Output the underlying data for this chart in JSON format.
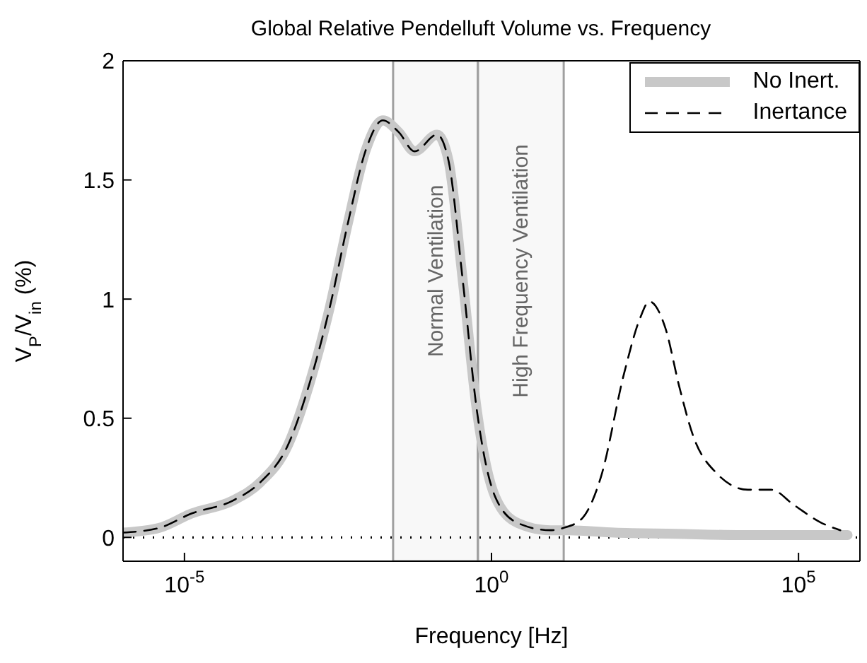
{
  "chart_data": {
    "type": "line",
    "title": "Global Relative Pendelluft Volume vs. Frequency",
    "xlabel": "Frequency [Hz]",
    "ylabel": "V$_{P}$/V$_{in}$ (%)",
    "log": "x",
    "xlim": [
      1e-06,
      1000000.0
    ],
    "xticks": [
      {
        "value": 1e-05,
        "label": "10$^{-5}$"
      },
      {
        "value": 1,
        "label": "10$^{0}$"
      },
      {
        "value": 100000,
        "label": "10$^{5}$"
      }
    ],
    "ylim": [
      -0.1,
      2
    ],
    "yticks": [
      0,
      0.5,
      1,
      1.5,
      2
    ],
    "legend": "top right",
    "marker": "none",
    "series": [
      {
        "name": "No Inert.",
        "color": "#c8c8c8",
        "line_style": "solid",
        "x": [
          1e-06,
          3.9e-06,
          1.3e-05,
          6.2e-05,
          0.00017,
          0.00049,
          0.0011,
          0.0023,
          0.0046,
          0.0091,
          0.017,
          0.031,
          0.056,
          0.13,
          0.2,
          0.34,
          0.58,
          1.15,
          2.7,
          9.1,
          18,
          100,
          1000,
          10000,
          100000,
          630000
        ],
        "values": [
          0.02,
          0.04,
          0.1,
          0.155,
          0.23,
          0.39,
          0.65,
          0.96,
          1.32,
          1.63,
          1.75,
          1.7,
          1.62,
          1.69,
          1.58,
          1.08,
          0.53,
          0.17,
          0.06,
          0.03,
          0.03,
          0.02,
          0.015,
          0.01,
          0.01,
          0.01
        ]
      },
      {
        "name": "Inertance",
        "color": "#000000",
        "line_style": "dashed",
        "x": [
          1e-06,
          3.9e-06,
          1.3e-05,
          6.2e-05,
          0.00017,
          0.00049,
          0.0011,
          0.0023,
          0.0046,
          0.0091,
          0.017,
          0.031,
          0.056,
          0.13,
          0.2,
          0.34,
          0.58,
          1.15,
          2.7,
          9.1,
          15,
          30,
          60,
          145,
          263,
          372,
          676,
          1150,
          1900,
          4600,
          15000,
          36000,
          85000,
          240000,
          480000
        ],
        "values": [
          0.02,
          0.04,
          0.1,
          0.155,
          0.23,
          0.39,
          0.65,
          0.96,
          1.32,
          1.63,
          1.75,
          1.7,
          1.62,
          1.69,
          1.58,
          1.08,
          0.53,
          0.17,
          0.06,
          0.03,
          0.04,
          0.08,
          0.25,
          0.69,
          0.92,
          0.99,
          0.88,
          0.63,
          0.43,
          0.27,
          0.2,
          0.2,
          0.135,
          0.06,
          0.03
        ]
      }
    ],
    "ref_lines": [
      {
        "axis": "y",
        "value": 0,
        "color": "#000000",
        "line_style": "dotted"
      }
    ],
    "bands": [
      {
        "axis": "x",
        "from": 0.025,
        "to": 0.6,
        "label": "Normal Ventilation",
        "color": "#a0a0a0"
      },
      {
        "axis": "x",
        "from": 0.6,
        "to": 15,
        "label": "High Frequency Ventilation",
        "color": "#a0a0a0"
      }
    ]
  }
}
